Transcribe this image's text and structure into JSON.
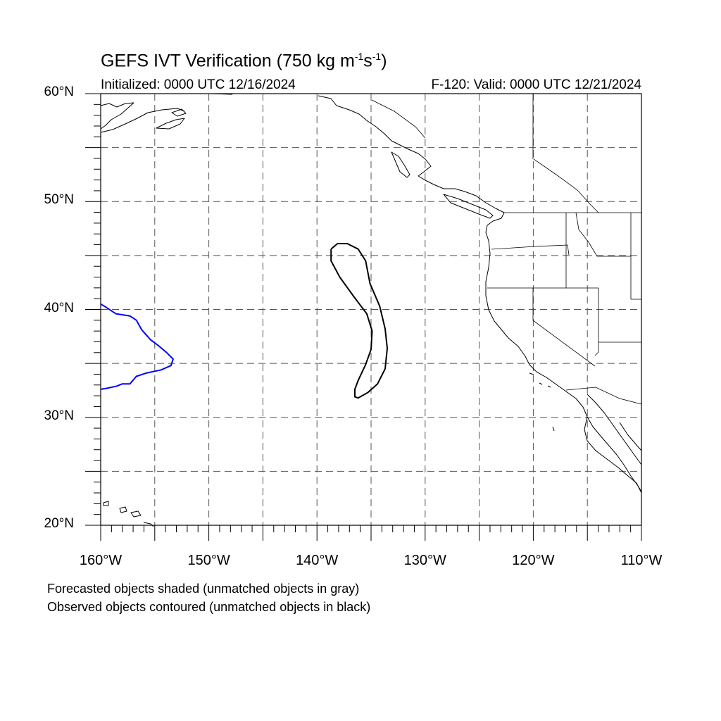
{
  "title": {
    "main": "GEFS IVT Verification (750 kg m",
    "sup1": "-1",
    "mid": "s",
    "sup2": "-1",
    "end": ")"
  },
  "initialized": "Initialized: 0000 UTC 12/16/2024",
  "valid": "F-120: Valid: 0000 UTC 12/21/2024",
  "lat_labels": [
    {
      "lat": 60,
      "text": "60°N"
    },
    {
      "lat": 50,
      "text": "50°N"
    },
    {
      "lat": 40,
      "text": "40°N"
    },
    {
      "lat": 30,
      "text": "30°N"
    },
    {
      "lat": 20,
      "text": "20°N"
    }
  ],
  "lon_labels": [
    {
      "lon": -160,
      "text": "160°W"
    },
    {
      "lon": -150,
      "text": "150°W"
    },
    {
      "lon": -140,
      "text": "140°W"
    },
    {
      "lon": -130,
      "text": "130°W"
    },
    {
      "lon": -120,
      "text": "120°W"
    },
    {
      "lon": -110,
      "text": "110°W"
    }
  ],
  "footnotes": [
    "Forecasted objects shaded (unmatched objects in gray)",
    "Observed objects contoured (unmatched objects in black)"
  ],
  "map_extent": {
    "lon_min": -160,
    "lon_max": -110,
    "lat_min": 20,
    "lat_max": 60
  },
  "grid_spacing_deg": 5,
  "colors": {
    "observed_unmatched": "#000000",
    "observed_matched": "#0000ff",
    "grid": "#555555",
    "coast": "#000000"
  },
  "observed_objects": [
    {
      "name": "unmatched-observed-object",
      "color": "#000000",
      "points": [
        [
          -138.7,
          45.6
        ],
        [
          -138.1,
          46.1
        ],
        [
          -137.2,
          46.1
        ],
        [
          -136.2,
          45.6
        ],
        [
          -135.5,
          44.5
        ],
        [
          -135.1,
          42.4
        ],
        [
          -134.2,
          40.3
        ],
        [
          -133.7,
          38.2
        ],
        [
          -133.5,
          36.4
        ],
        [
          -133.7,
          34.5
        ],
        [
          -134.4,
          33.1
        ],
        [
          -135.3,
          32.3
        ],
        [
          -136.2,
          31.8
        ],
        [
          -136.5,
          31.9
        ],
        [
          -136.5,
          32.6
        ],
        [
          -136.2,
          33.4
        ],
        [
          -135.5,
          34.9
        ],
        [
          -135.0,
          36.3
        ],
        [
          -134.9,
          38.0
        ],
        [
          -135.4,
          39.6
        ],
        [
          -136.6,
          41.2
        ],
        [
          -137.9,
          43.0
        ],
        [
          -138.7,
          44.5
        ],
        [
          -138.7,
          45.6
        ]
      ]
    },
    {
      "name": "matched-observed-object",
      "color": "#0000ff",
      "points": [
        [
          -160.0,
          40.5
        ],
        [
          -159.5,
          40.2
        ],
        [
          -158.6,
          39.6
        ],
        [
          -157.3,
          39.4
        ],
        [
          -156.7,
          39.0
        ],
        [
          -156.2,
          38.1
        ],
        [
          -155.4,
          37.2
        ],
        [
          -154.6,
          36.6
        ],
        [
          -153.9,
          36.0
        ],
        [
          -153.3,
          35.4
        ],
        [
          -153.5,
          34.8
        ],
        [
          -154.4,
          34.4
        ],
        [
          -155.8,
          34.1
        ],
        [
          -156.7,
          33.8
        ],
        [
          -157.3,
          33.1
        ],
        [
          -158.0,
          33.1
        ],
        [
          -158.5,
          32.9
        ],
        [
          -159.4,
          32.7
        ],
        [
          -160.0,
          32.6
        ]
      ]
    }
  ]
}
